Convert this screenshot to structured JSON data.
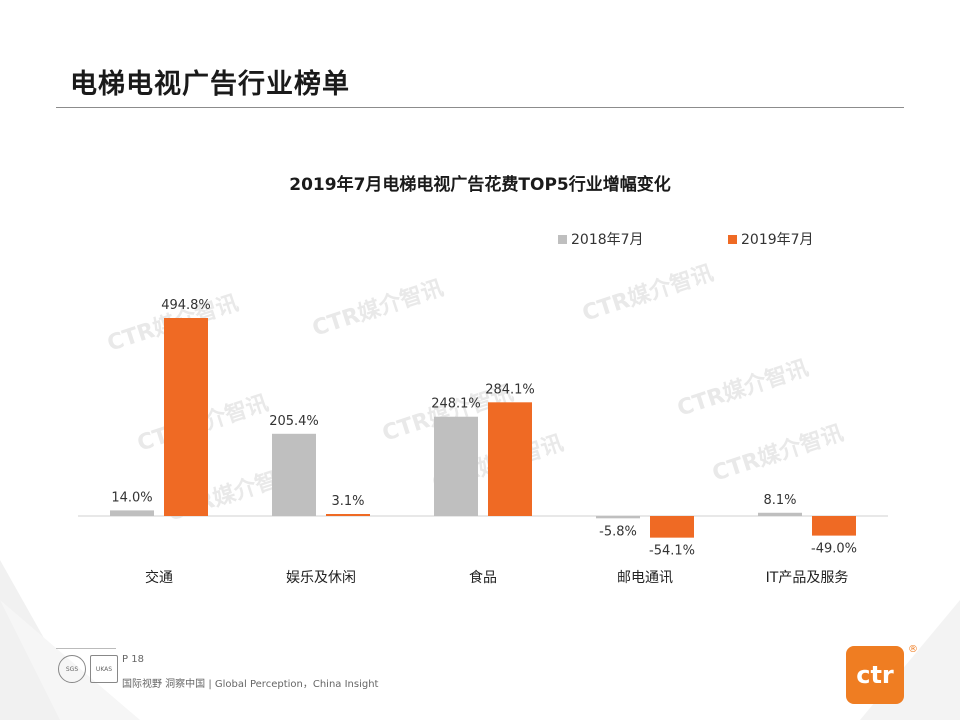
{
  "page": {
    "title": "电梯电视广告行业榜单",
    "watermark": "CTR媒介智讯"
  },
  "chart_data": {
    "type": "bar",
    "title": "2019年7月电梯电视广告花费TOP5行业增幅变化",
    "categories": [
      "交通",
      "娱乐及休闲",
      "食品",
      "邮电通讯",
      "IT产品及服务"
    ],
    "series": [
      {
        "name": "2018年7月",
        "color": "#bfbfbf",
        "values": [
          14.0,
          205.4,
          248.1,
          -5.8,
          8.1
        ],
        "labels": [
          "14.0%",
          "205.4%",
          "248.1%",
          "-5.8%",
          "8.1%"
        ]
      },
      {
        "name": "2019年7月",
        "color": "#ef6a24",
        "values": [
          494.8,
          3.1,
          284.1,
          -54.1,
          -49.0
        ],
        "labels": [
          "494.8%",
          "3.1%",
          "284.1%",
          "-54.1%",
          "-49.0%"
        ]
      }
    ],
    "ylim": [
      -70,
      520
    ],
    "legend_position": "top-right",
    "grid": false
  },
  "footer": {
    "page_number": "P 18",
    "tagline": "国际视野 洞察中国 | Global Perception，China Insight",
    "cert_1": "SGS",
    "cert_2": "UKAS",
    "logo_text": "ctr",
    "logo_reg": "®"
  }
}
